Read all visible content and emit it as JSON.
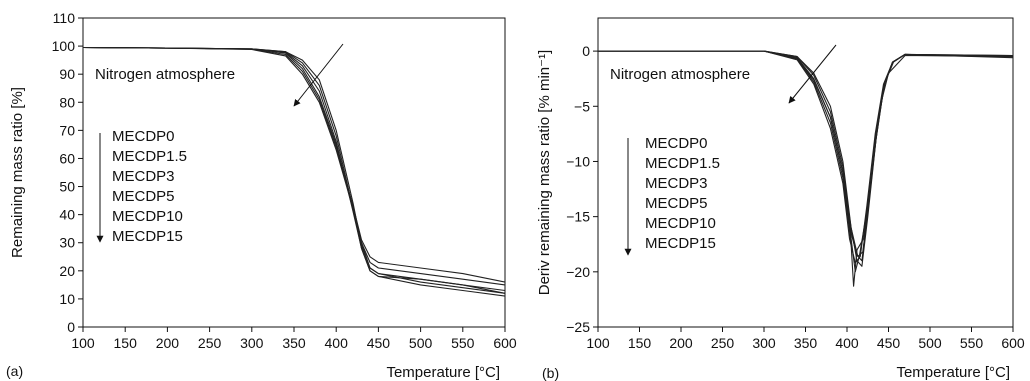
{
  "chart_data": [
    {
      "type": "line",
      "panel_label": "(a)",
      "title": "",
      "xlabel": "Temperature [°C]",
      "ylabel": "Remaining mass ratio [%]",
      "xlim": [
        100,
        600
      ],
      "ylim": [
        0,
        110
      ],
      "xticks": [
        "100",
        "150",
        "200",
        "250",
        "300",
        "350",
        "400",
        "450",
        "500",
        "550",
        "600"
      ],
      "yticks": [
        "0",
        "10",
        "20",
        "30",
        "40",
        "50",
        "60",
        "70",
        "80",
        "90",
        "100",
        "110"
      ],
      "grid": false,
      "annotation": "Nitrogen atmosphere",
      "legend": [
        "MECDP0",
        "MECDP1.5",
        "MECDP3",
        "MECDP5",
        "MECDP10",
        "MECDP15"
      ],
      "series": [
        {
          "points": [
            [
              100,
              99.5
            ],
            [
              200,
              99.3
            ],
            [
              300,
              99.0
            ],
            [
              340,
              98.0
            ],
            [
              360,
              94
            ],
            [
              380,
              86
            ],
            [
              400,
              68
            ],
            [
              420,
              42
            ],
            [
              430,
              28
            ],
            [
              440,
              20
            ],
            [
              450,
              18
            ],
            [
              500,
              15
            ],
            [
              550,
              13
            ],
            [
              600,
              11
            ]
          ]
        },
        {
          "points": [
            [
              100,
              99.5
            ],
            [
              200,
              99.3
            ],
            [
              300,
              99.0
            ],
            [
              340,
              98.0
            ],
            [
              360,
              95
            ],
            [
              380,
              88
            ],
            [
              400,
              70
            ],
            [
              420,
              44
            ],
            [
              430,
              29
            ],
            [
              440,
              21
            ],
            [
              450,
              19
            ],
            [
              500,
              16
            ],
            [
              550,
              14
            ],
            [
              600,
              12
            ]
          ]
        },
        {
          "points": [
            [
              100,
              99.5
            ],
            [
              200,
              99.3
            ],
            [
              300,
              99.0
            ],
            [
              340,
              97.8
            ],
            [
              360,
              93
            ],
            [
              380,
              84
            ],
            [
              400,
              66
            ],
            [
              420,
              41
            ],
            [
              430,
              28
            ],
            [
              440,
              20
            ],
            [
              450,
              18
            ],
            [
              500,
              17
            ],
            [
              550,
              15
            ],
            [
              600,
              13
            ]
          ]
        },
        {
          "points": [
            [
              100,
              99.5
            ],
            [
              200,
              99.3
            ],
            [
              300,
              99.0
            ],
            [
              340,
              97.5
            ],
            [
              360,
              92
            ],
            [
              380,
              82
            ],
            [
              400,
              65
            ],
            [
              420,
              42
            ],
            [
              430,
              30
            ],
            [
              440,
              23
            ],
            [
              450,
              21
            ],
            [
              500,
              19
            ],
            [
              550,
              17
            ],
            [
              600,
              15
            ]
          ]
        },
        {
          "points": [
            [
              100,
              99.5
            ],
            [
              200,
              99.3
            ],
            [
              300,
              98.9
            ],
            [
              340,
              97.0
            ],
            [
              360,
              91
            ],
            [
              380,
              81
            ],
            [
              400,
              64
            ],
            [
              420,
              43
            ],
            [
              430,
              31
            ],
            [
              440,
              25
            ],
            [
              450,
              23
            ],
            [
              500,
              21
            ],
            [
              550,
              19
            ],
            [
              600,
              16
            ]
          ]
        },
        {
          "points": [
            [
              100,
              99.5
            ],
            [
              200,
              99.3
            ],
            [
              300,
              98.8
            ],
            [
              340,
              96.5
            ],
            [
              360,
              90
            ],
            [
              380,
              80
            ],
            [
              400,
              63
            ],
            [
              420,
              42
            ],
            [
              430,
              30
            ],
            [
              440,
              21
            ],
            [
              450,
              19
            ],
            [
              500,
              17
            ],
            [
              550,
              15
            ],
            [
              600,
              12
            ]
          ]
        }
      ]
    },
    {
      "type": "line",
      "panel_label": "(b)",
      "title": "",
      "xlabel": "Temperature [°C]",
      "ylabel": "Deriv remaining mass ratio [% min⁻¹]",
      "xlim": [
        100,
        600
      ],
      "ylim": [
        -25,
        3
      ],
      "xticks": [
        "100",
        "150",
        "200",
        "250",
        "300",
        "350",
        "400",
        "450",
        "500",
        "550",
        "600"
      ],
      "yticks": [
        "-25",
        "-20",
        "-15",
        "-10",
        "-5",
        "0"
      ],
      "grid": false,
      "annotation": "Nitrogen atmosphere",
      "legend": [
        "MECDP0",
        "MECDP1.5",
        "MECDP3",
        "MECDP5",
        "MECDP10",
        "MECDP15"
      ],
      "series": [
        {
          "points": [
            [
              100,
              0
            ],
            [
              300,
              0
            ],
            [
              340,
              -0.5
            ],
            [
              360,
              -2
            ],
            [
              380,
              -5
            ],
            [
              395,
              -10
            ],
            [
              405,
              -16
            ],
            [
              412,
              -19
            ],
            [
              418,
              -19.5
            ],
            [
              425,
              -15
            ],
            [
              435,
              -8
            ],
            [
              445,
              -3
            ],
            [
              455,
              -1
            ],
            [
              470,
              -0.3
            ],
            [
              600,
              -0.4
            ]
          ]
        },
        {
          "points": [
            [
              100,
              0
            ],
            [
              300,
              0
            ],
            [
              340,
              -0.5
            ],
            [
              360,
              -2.2
            ],
            [
              380,
              -5.5
            ],
            [
              395,
              -10.5
            ],
            [
              405,
              -16.5
            ],
            [
              412,
              -18.5
            ],
            [
              418,
              -19
            ],
            [
              425,
              -14.5
            ],
            [
              435,
              -8
            ],
            [
              445,
              -3
            ],
            [
              455,
              -1
            ],
            [
              470,
              -0.3
            ],
            [
              600,
              -0.4
            ]
          ]
        },
        {
          "points": [
            [
              100,
              0
            ],
            [
              300,
              0
            ],
            [
              340,
              -0.6
            ],
            [
              360,
              -2.5
            ],
            [
              380,
              -6
            ],
            [
              395,
              -11
            ],
            [
              405,
              -17
            ],
            [
              410,
              -20
            ],
            [
              415,
              -18.5
            ],
            [
              425,
              -14
            ],
            [
              435,
              -7.5
            ],
            [
              445,
              -3
            ],
            [
              455,
              -1
            ],
            [
              470,
              -0.3
            ],
            [
              600,
              -0.5
            ]
          ]
        },
        {
          "points": [
            [
              100,
              0
            ],
            [
              300,
              0
            ],
            [
              340,
              -0.7
            ],
            [
              360,
              -2.8
            ],
            [
              380,
              -6.5
            ],
            [
              395,
              -11.5
            ],
            [
              405,
              -17.5
            ],
            [
              408,
              -21.3
            ],
            [
              412,
              -18
            ],
            [
              420,
              -17
            ],
            [
              430,
              -11
            ],
            [
              440,
              -5
            ],
            [
              450,
              -2
            ],
            [
              470,
              -0.4
            ],
            [
              600,
              -0.5
            ]
          ]
        },
        {
          "points": [
            [
              100,
              0
            ],
            [
              300,
              0
            ],
            [
              340,
              -0.8
            ],
            [
              360,
              -3.0
            ],
            [
              380,
              -7
            ],
            [
              395,
              -12
            ],
            [
              403,
              -17
            ],
            [
              410,
              -19.2
            ],
            [
              416,
              -18.6
            ],
            [
              424,
              -14
            ],
            [
              434,
              -7.5
            ],
            [
              444,
              -3
            ],
            [
              455,
              -1
            ],
            [
              470,
              -0.3
            ],
            [
              600,
              -0.6
            ]
          ]
        },
        {
          "points": [
            [
              100,
              0
            ],
            [
              300,
              0
            ],
            [
              340,
              -0.7
            ],
            [
              360,
              -2.6
            ],
            [
              380,
              -6
            ],
            [
              395,
              -11
            ],
            [
              405,
              -16
            ],
            [
              413,
              -18.6
            ],
            [
              419,
              -18.2
            ],
            [
              426,
              -14
            ],
            [
              436,
              -7
            ],
            [
              446,
              -2.8
            ],
            [
              456,
              -1
            ],
            [
              470,
              -0.3
            ],
            [
              600,
              -0.5
            ]
          ]
        }
      ]
    }
  ]
}
